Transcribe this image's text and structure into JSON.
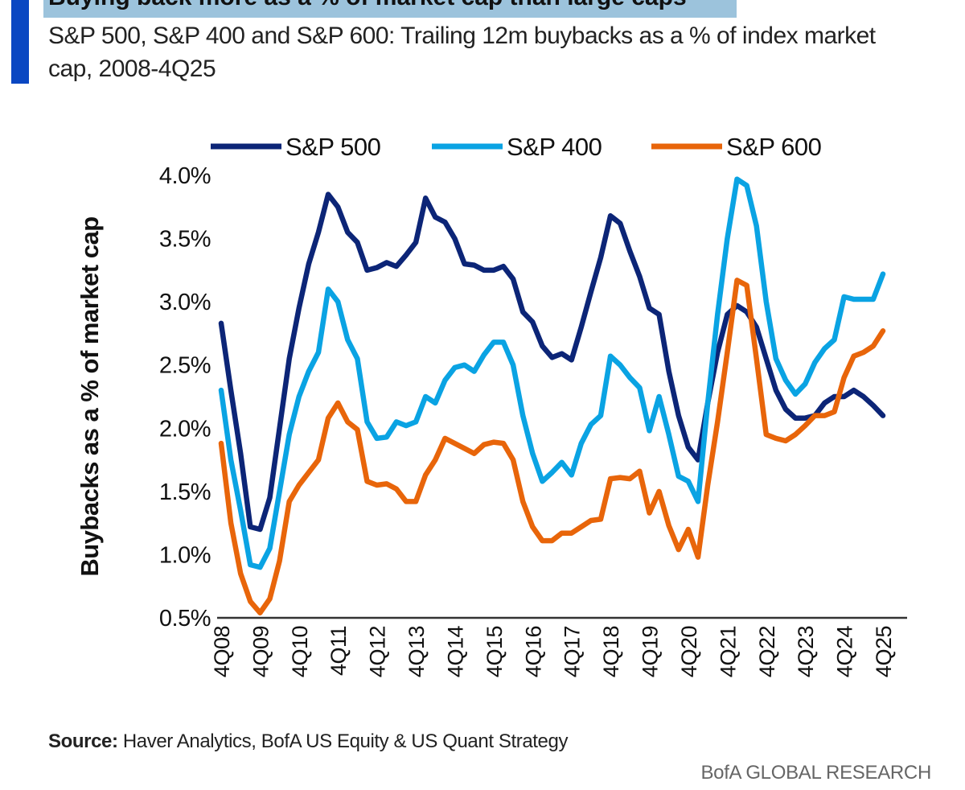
{
  "header": {
    "title": "Buying back more as a % of market cap than large caps",
    "subtitle": "S&P 500, S&P 400 and S&P 600: Trailing 12m buybacks as a % of index market cap, 2008-4Q25"
  },
  "footer": {
    "source_label": "Source:",
    "source_text": "Haver Analytics, BofA US Equity & US Quant Strategy",
    "brand": "BofA GLOBAL RESEARCH"
  },
  "chart_data": {
    "type": "line",
    "title": "S&P 500, S&P 400 and S&P 600: Trailing 12m buybacks as a % of index market cap, 2008-4Q25",
    "xlabel": "",
    "ylabel": "Buybacks as a % of market cap",
    "ylim": [
      0.5,
      4.0
    ],
    "yticks": [
      "0.5%",
      "1.0%",
      "1.5%",
      "2.0%",
      "2.5%",
      "3.0%",
      "3.5%",
      "4.0%"
    ],
    "ytick_values": [
      0.5,
      1.0,
      1.5,
      2.0,
      2.5,
      3.0,
      3.5,
      4.0
    ],
    "x_start": "4Q08",
    "x_end": "4Q25",
    "frequency": "quarterly",
    "xticks": [
      "4Q08",
      "4Q09",
      "4Q10",
      "4Q11",
      "4Q12",
      "4Q13",
      "4Q14",
      "4Q15",
      "4Q16",
      "4Q17",
      "4Q18",
      "4Q19",
      "4Q20",
      "4Q21",
      "4Q22",
      "4Q23",
      "4Q24",
      "4Q25"
    ],
    "grid": false,
    "legend": "top",
    "series": [
      {
        "name": "S&P 500",
        "color": "#0c2577",
        "values": [
          2.83,
          2.3,
          1.8,
          1.22,
          1.2,
          1.45,
          2.0,
          2.55,
          2.95,
          3.3,
          3.55,
          3.85,
          3.75,
          3.55,
          3.47,
          3.25,
          3.27,
          3.31,
          3.28,
          3.37,
          3.47,
          3.82,
          3.67,
          3.63,
          3.5,
          3.3,
          3.29,
          3.25,
          3.25,
          3.28,
          3.18,
          2.92,
          2.84,
          2.65,
          2.56,
          2.59,
          2.54,
          2.8,
          3.08,
          3.35,
          3.68,
          3.62,
          3.4,
          3.2,
          2.95,
          2.9,
          2.45,
          2.1,
          1.85,
          1.75,
          2.2,
          2.6,
          2.9,
          2.97,
          2.92,
          2.8,
          2.55,
          2.3,
          2.15,
          2.08,
          2.08,
          2.1,
          2.2,
          2.25,
          2.25,
          2.3,
          2.25,
          2.18,
          2.1
        ]
      },
      {
        "name": "S&P 400",
        "color": "#0aa3e3",
        "values": [
          2.3,
          1.75,
          1.35,
          0.92,
          0.9,
          1.05,
          1.5,
          1.95,
          2.25,
          2.45,
          2.6,
          3.1,
          3.0,
          2.7,
          2.55,
          2.05,
          1.92,
          1.93,
          2.05,
          2.02,
          2.05,
          2.25,
          2.2,
          2.38,
          2.48,
          2.5,
          2.45,
          2.58,
          2.68,
          2.68,
          2.5,
          2.1,
          1.8,
          1.58,
          1.65,
          1.73,
          1.63,
          1.88,
          2.03,
          2.1,
          2.57,
          2.5,
          2.4,
          2.32,
          1.98,
          2.25,
          1.95,
          1.62,
          1.58,
          1.42,
          2.2,
          2.9,
          3.5,
          3.97,
          3.92,
          3.6,
          3.0,
          2.55,
          2.38,
          2.27,
          2.35,
          2.52,
          2.63,
          2.7,
          3.04,
          3.02,
          3.02,
          3.02,
          3.22
        ]
      },
      {
        "name": "S&P 600",
        "color": "#e8650a",
        "values": [
          1.88,
          1.25,
          0.85,
          0.63,
          0.54,
          0.65,
          0.95,
          1.42,
          1.55,
          1.65,
          1.75,
          2.08,
          2.2,
          2.05,
          1.99,
          1.58,
          1.55,
          1.56,
          1.52,
          1.42,
          1.42,
          1.63,
          1.75,
          1.92,
          1.88,
          1.84,
          1.8,
          1.87,
          1.89,
          1.88,
          1.75,
          1.42,
          1.22,
          1.11,
          1.11,
          1.17,
          1.17,
          1.22,
          1.27,
          1.28,
          1.6,
          1.61,
          1.6,
          1.66,
          1.33,
          1.5,
          1.23,
          1.04,
          1.2,
          0.98,
          1.55,
          2.05,
          2.6,
          3.17,
          3.13,
          2.55,
          1.95,
          1.92,
          1.9,
          1.95,
          2.02,
          2.1,
          2.1,
          2.13,
          2.4,
          2.57,
          2.6,
          2.65,
          2.77
        ]
      }
    ]
  }
}
